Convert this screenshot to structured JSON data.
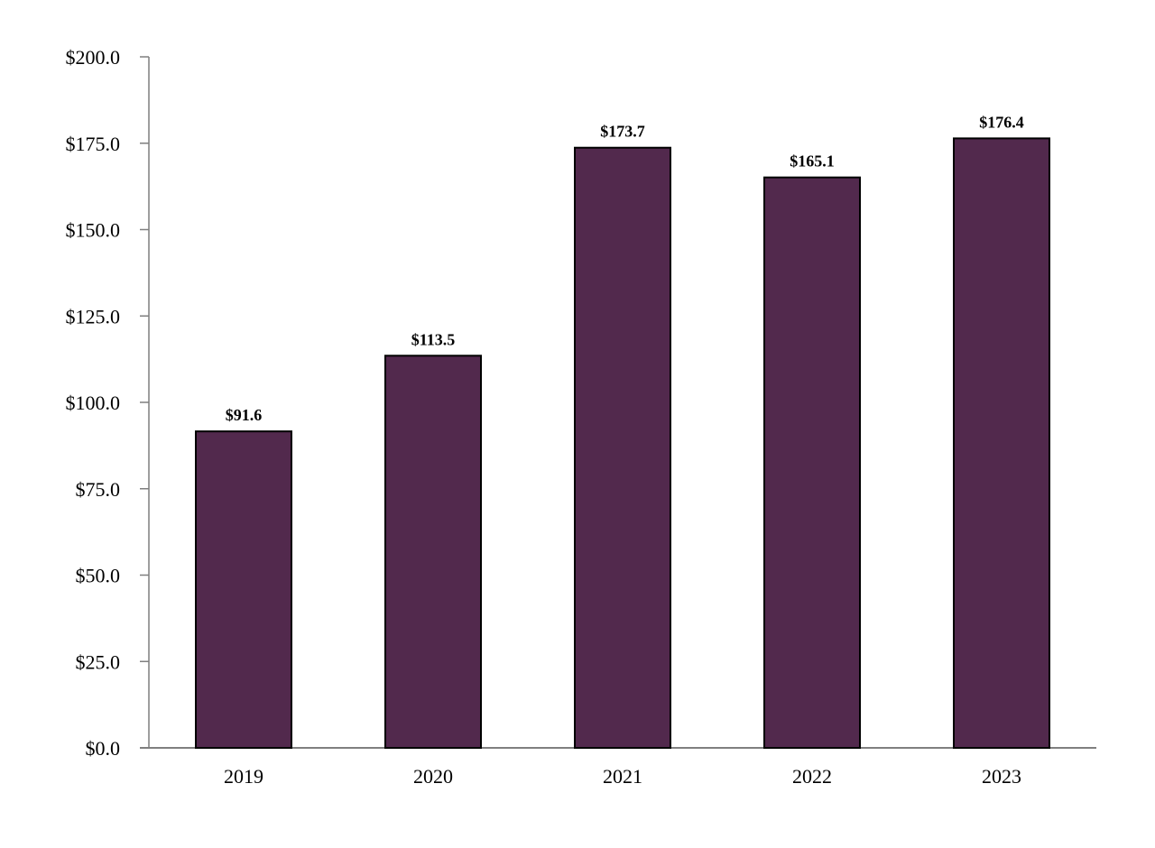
{
  "chart_data": {
    "type": "bar",
    "categories": [
      "2019",
      "2020",
      "2021",
      "2022",
      "2023"
    ],
    "values": [
      91.6,
      113.5,
      173.7,
      165.1,
      176.4
    ],
    "data_labels": [
      "$91.6",
      "$113.5",
      "$173.7",
      "$165.1",
      "$176.4"
    ],
    "title": "",
    "xlabel": "",
    "ylabel": "",
    "ylim": [
      0,
      200
    ],
    "y_ticks": [
      0,
      25,
      50,
      75,
      100,
      125,
      150,
      175,
      200
    ],
    "y_tick_labels": [
      "$0.0",
      "$25.0",
      "$50.0",
      "$75.0",
      "$100.0",
      "$125.0",
      "$150.0",
      "$175.0",
      "$200.0"
    ],
    "grid": false,
    "legend": "none",
    "colors": {
      "bar_fill": "#52294d",
      "bar_stroke": "#000000",
      "axis": "#7f7f7f",
      "text": "#000000"
    }
  }
}
